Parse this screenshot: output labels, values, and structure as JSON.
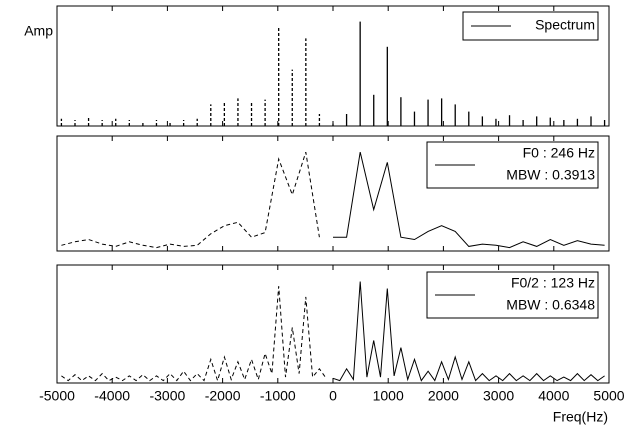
{
  "chart_data": [
    {
      "type": "stem",
      "ylabel": "Amp",
      "legend": [
        "Spectrum"
      ],
      "xlim": [
        -5000,
        5000
      ],
      "ylim": [
        0,
        1
      ],
      "x": [
        -4920,
        -4674,
        -4428,
        -4182,
        -3936,
        -3690,
        -3444,
        -3198,
        -2952,
        -2706,
        -2460,
        -2214,
        -1968,
        -1722,
        -1476,
        -1230,
        -984,
        -738,
        -492,
        -246,
        0,
        246,
        492,
        738,
        984,
        1230,
        1476,
        1722,
        1968,
        2214,
        2460,
        2706,
        2952,
        3198,
        3444,
        3690,
        3936,
        4182,
        4428,
        4674,
        4920
      ],
      "values": [
        0.06,
        0.05,
        0.08,
        0.05,
        0.06,
        0.05,
        0.04,
        0.05,
        0.04,
        0.05,
        0.06,
        0.18,
        0.2,
        0.23,
        0.2,
        0.22,
        0.82,
        0.47,
        0.73,
        0.1,
        0.02,
        0.1,
        0.87,
        0.26,
        0.66,
        0.24,
        0.12,
        0.22,
        0.23,
        0.18,
        0.12,
        0.08,
        0.06,
        0.09,
        0.05,
        0.08,
        0.07,
        0.05,
        0.06,
        0.08,
        0.05
      ]
    },
    {
      "type": "line",
      "legend": [
        "F0 : 246 Hz",
        "MBW : 0.3913"
      ],
      "xlim": [
        -5000,
        5000
      ],
      "ylim": [
        0,
        1
      ],
      "x": [
        -4920,
        -4674,
        -4428,
        -4182,
        -3936,
        -3690,
        -3444,
        -3198,
        -2952,
        -2706,
        -2460,
        -2214,
        -1968,
        -1722,
        -1476,
        -1230,
        -984,
        -738,
        -492,
        -246,
        0,
        246,
        492,
        738,
        984,
        1230,
        1476,
        1722,
        1968,
        2214,
        2460,
        2706,
        2952,
        3198,
        3444,
        3690,
        3936,
        4182,
        4428,
        4674,
        4920
      ],
      "values": [
        0.05,
        0.08,
        0.1,
        0.06,
        0.04,
        0.08,
        0.05,
        0.03,
        0.06,
        0.04,
        0.05,
        0.15,
        0.22,
        0.25,
        0.12,
        0.16,
        0.8,
        0.49,
        0.86,
        0.12,
        0.12,
        0.12,
        0.86,
        0.36,
        0.77,
        0.12,
        0.1,
        0.17,
        0.22,
        0.17,
        0.04,
        0.06,
        0.05,
        0.03,
        0.08,
        0.04,
        0.1,
        0.05,
        0.09,
        0.06,
        0.05
      ]
    },
    {
      "type": "line",
      "legend": [
        "F0/2 : 123 Hz",
        "MBW : 0.6348"
      ],
      "xlabel": "Freq(Hz)",
      "xlim": [
        -5000,
        5000
      ],
      "ylim": [
        0,
        1
      ],
      "xticks": [
        -5000,
        -4000,
        -3000,
        -2000,
        -1000,
        0,
        1000,
        2000,
        3000,
        4000,
        5000
      ],
      "x": [
        -4920,
        -4797,
        -4674,
        -4551,
        -4428,
        -4305,
        -4182,
        -4059,
        -3936,
        -3813,
        -3690,
        -3567,
        -3444,
        -3321,
        -3198,
        -3075,
        -2952,
        -2829,
        -2706,
        -2583,
        -2460,
        -2337,
        -2214,
        -2091,
        -1968,
        -1845,
        -1722,
        -1599,
        -1476,
        -1353,
        -1230,
        -1107,
        -984,
        -861,
        -738,
        -615,
        -492,
        -369,
        -246,
        -123,
        0,
        123,
        246,
        369,
        492,
        615,
        738,
        861,
        984,
        1107,
        1230,
        1353,
        1476,
        1599,
        1722,
        1845,
        1968,
        2091,
        2214,
        2337,
        2460,
        2583,
        2706,
        2829,
        2952,
        3075,
        3198,
        3321,
        3444,
        3567,
        3690,
        3813,
        3936,
        4059,
        4182,
        4305,
        4428,
        4551,
        4674,
        4797,
        4920
      ],
      "values": [
        0.06,
        0.02,
        0.07,
        0.02,
        0.06,
        0.02,
        0.08,
        0.02,
        0.05,
        0.02,
        0.06,
        0.02,
        0.07,
        0.02,
        0.06,
        0.02,
        0.08,
        0.02,
        0.1,
        0.02,
        0.08,
        0.02,
        0.2,
        0.02,
        0.22,
        0.03,
        0.18,
        0.03,
        0.2,
        0.03,
        0.25,
        0.08,
        0.82,
        0.05,
        0.47,
        0.08,
        0.73,
        0.05,
        0.12,
        0.04,
        0.04,
        0.02,
        0.12,
        0.03,
        0.86,
        0.05,
        0.36,
        0.05,
        0.8,
        0.06,
        0.3,
        0.03,
        0.2,
        0.02,
        0.1,
        0.02,
        0.18,
        0.03,
        0.22,
        0.03,
        0.18,
        0.02,
        0.08,
        0.02,
        0.06,
        0.02,
        0.08,
        0.02,
        0.06,
        0.02,
        0.08,
        0.02,
        0.06,
        0.02,
        0.05,
        0.02,
        0.08,
        0.02,
        0.07,
        0.02,
        0.06
      ]
    }
  ]
}
